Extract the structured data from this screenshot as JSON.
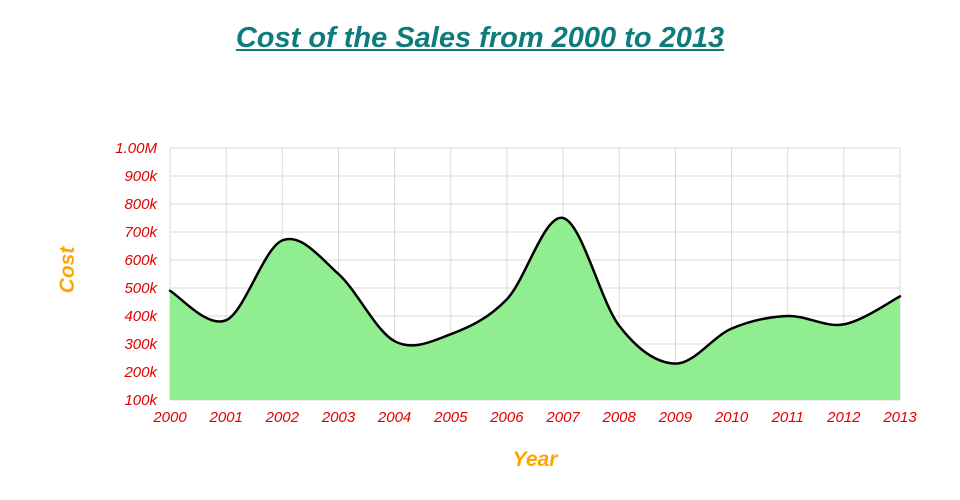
{
  "chart_data": {
    "type": "area",
    "title": "Cost of the Sales from 2000 to 2013",
    "xlabel": "Year",
    "ylabel": "Cost",
    "categories": [
      2000,
      2001,
      2002,
      2003,
      2004,
      2005,
      2006,
      2007,
      2008,
      2009,
      2010,
      2011,
      2012,
      2013
    ],
    "values": [
      490000,
      385000,
      670000,
      550000,
      310000,
      335000,
      460000,
      750000,
      365000,
      230000,
      355000,
      400000,
      370000,
      470000
    ],
    "ylim": [
      100000,
      1000000
    ],
    "ytick_step": 100000,
    "ytick_labels": [
      "100k",
      "200k",
      "300k",
      "400k",
      "500k",
      "600k",
      "700k",
      "800k",
      "900k",
      "1.00M"
    ],
    "grid": true,
    "legend_position": "none",
    "colors": {
      "title": "#0e7c7b",
      "tick_labels": "#e00000",
      "axis_titles": "#ffa500",
      "area_fill": "#90ee90",
      "line": "#000000",
      "grid": "#d9d9d9",
      "background": "#ffffff"
    }
  }
}
